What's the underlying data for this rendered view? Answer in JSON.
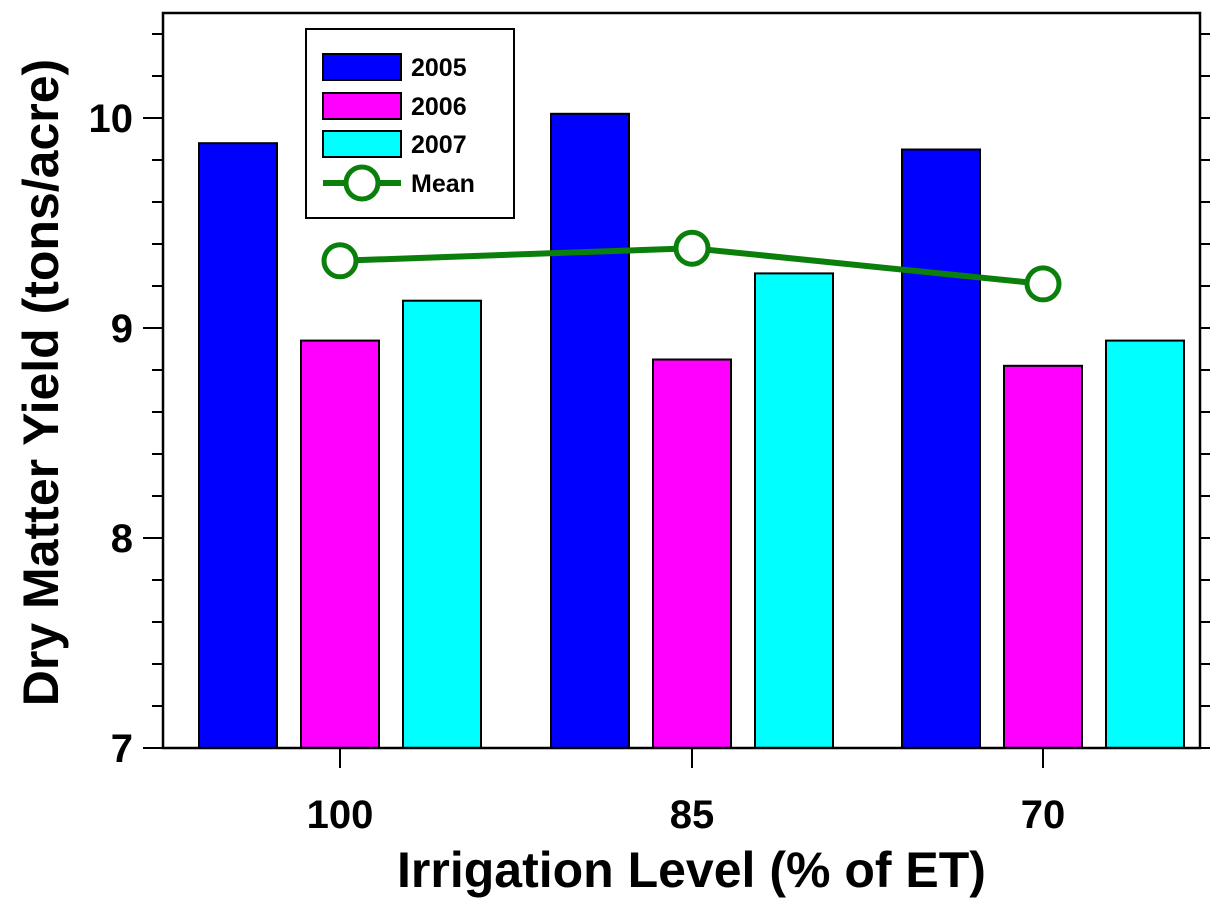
{
  "chart_data": {
    "type": "bar",
    "title": "",
    "xlabel": "Irrigation Level (% of ET)",
    "ylabel": "Dry Matter Yield (tons/acre)",
    "categories": [
      "100",
      "85",
      "70"
    ],
    "ylim": [
      7,
      10.5
    ],
    "yticks": [
      "7",
      "8",
      "9",
      "10"
    ],
    "series": [
      {
        "name": "2005",
        "type": "bar",
        "color": "#0000ff",
        "values": [
          9.88,
          10.02,
          9.85
        ]
      },
      {
        "name": "2006",
        "type": "bar",
        "color": "#ff00ff",
        "values": [
          8.94,
          8.85,
          8.82
        ]
      },
      {
        "name": "2007",
        "type": "bar",
        "color": "#00ffff",
        "values": [
          9.13,
          9.26,
          8.94
        ]
      },
      {
        "name": "Mean",
        "type": "line",
        "marker": "open-circle",
        "color": "#0b7f0b",
        "values": [
          9.32,
          9.38,
          9.21
        ]
      }
    ],
    "legend": {
      "position": "top-left"
    },
    "grid": false
  }
}
